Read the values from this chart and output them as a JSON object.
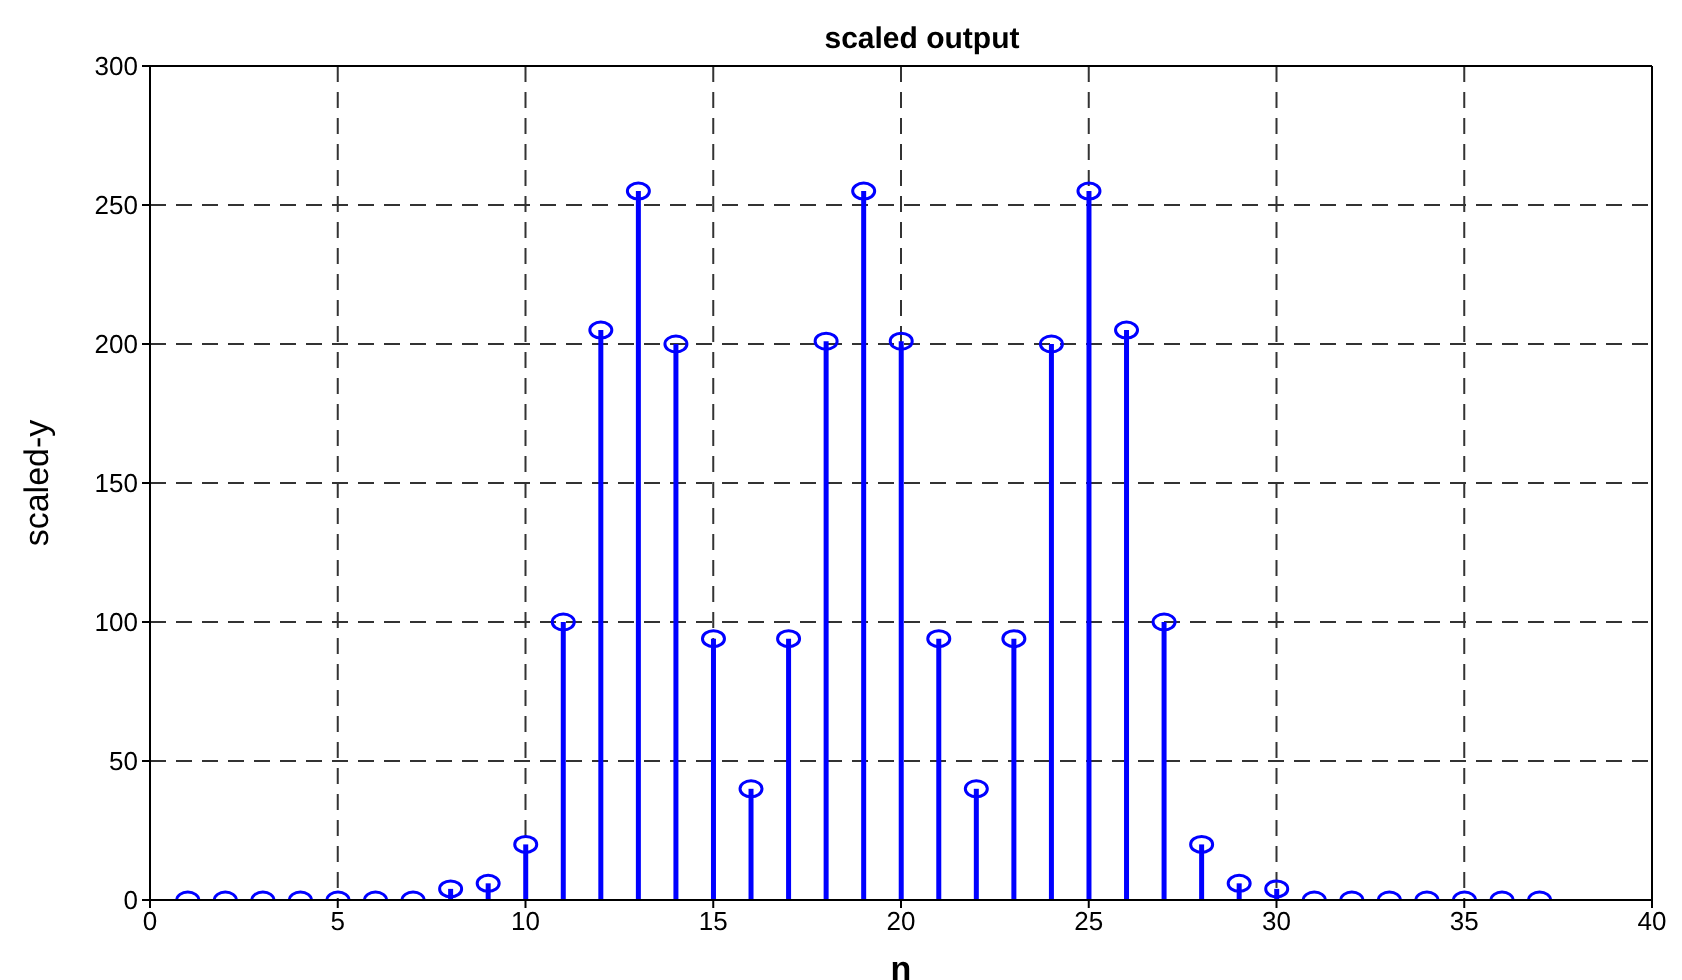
{
  "chart_data": {
    "type": "lollipop",
    "title": "scaled output",
    "xlabel": "n",
    "ylabel": "scaled-y",
    "x": [
      1,
      2,
      3,
      4,
      5,
      6,
      7,
      8,
      9,
      10,
      11,
      12,
      13,
      14,
      15,
      16,
      17,
      18,
      19,
      20,
      21,
      22,
      23,
      24,
      25,
      26,
      27,
      28,
      29,
      30,
      31,
      32,
      33,
      34,
      35,
      36,
      37
    ],
    "values": [
      0,
      0,
      0,
      0,
      0,
      0,
      0,
      4,
      6,
      20,
      100,
      205,
      255,
      200,
      94,
      40,
      94,
      201,
      255,
      201,
      94,
      40,
      94,
      200,
      255,
      205,
      100,
      20,
      6,
      4,
      0,
      0,
      0,
      0,
      0,
      0,
      0
    ],
    "color": "#0000ff",
    "marker": "circle",
    "grid": true,
    "xlim": [
      0,
      40
    ],
    "xticks": [
      0,
      5,
      10,
      15,
      20,
      25,
      30,
      35,
      40
    ],
    "ylim": [
      0,
      300
    ],
    "yticks": [
      0,
      50,
      100,
      150,
      200,
      250,
      300
    ]
  }
}
